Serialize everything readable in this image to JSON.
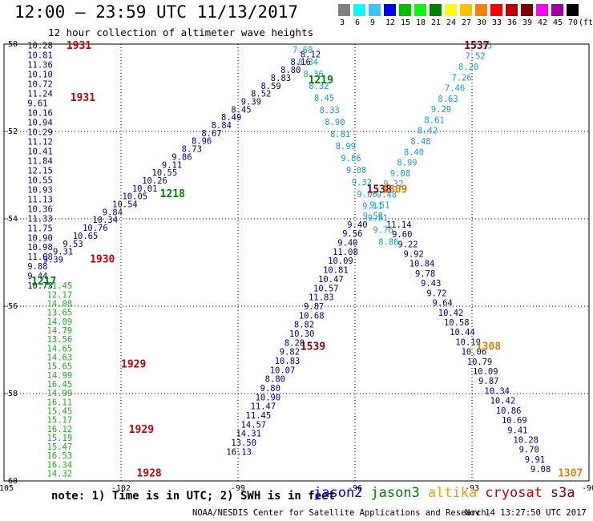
{
  "header": {
    "title": "12:00 — 23:59 UTC 11/13/2017",
    "subtitle": "12 hour collection of altimeter wave heights"
  },
  "color_scale": {
    "unit_label": "(ft)",
    "entries": [
      {
        "label": "3",
        "color": "#808080"
      },
      {
        "label": "6",
        "color": "#00ffff"
      },
      {
        "label": "9",
        "color": "#40c0ff"
      },
      {
        "label": "12",
        "color": "#0000ff"
      },
      {
        "label": "15",
        "color": "#00c000"
      },
      {
        "label": "18",
        "color": "#00ff00"
      },
      {
        "label": "21",
        "color": "#008000"
      },
      {
        "label": "24",
        "color": "#ffff00"
      },
      {
        "label": "27",
        "color": "#ffc000"
      },
      {
        "label": "30",
        "color": "#ff8000"
      },
      {
        "label": "33",
        "color": "#ff0000"
      },
      {
        "label": "36",
        "color": "#c00000"
      },
      {
        "label": "39",
        "color": "#800000"
      },
      {
        "label": "42",
        "color": "#ff00ff"
      },
      {
        "label": "45",
        "color": "#a000a0"
      },
      {
        "label": "70",
        "color": "#000000"
      }
    ]
  },
  "map": {
    "lon_ticks": [
      "-105",
      "-102",
      "-99",
      "-96",
      "-93",
      "-90"
    ],
    "lat_ticks": [
      "-50",
      "-52",
      "-54",
      "-56",
      "-58",
      "-60"
    ],
    "lon_range": [
      -105,
      -90
    ],
    "lat_range": [
      -60,
      -50
    ]
  },
  "tracks": [
    {
      "name": "col-left",
      "x": -104.4,
      "y_start": -50.1,
      "y_end": -55.6,
      "colors": "#000080",
      "values": [
        "10.28",
        "10.81",
        "11.36",
        "10.10",
        "10.72",
        "11.24",
        "9.61",
        "10.16",
        "10.94",
        "10.29",
        "11.12",
        "10.41",
        "11.84",
        "12.15",
        "10.55",
        "10.93",
        "11.13",
        "10.36",
        "11.33",
        "11.75",
        "10.90",
        "10.98",
        "11.08",
        "9.88",
        "9.44",
        "10.73"
      ]
    },
    {
      "name": "col-left-2",
      "x": -103.9,
      "y_start": -55.6,
      "y_end": -59.9,
      "colors": "#22aa22",
      "values": [
        "11.45",
        "12.17",
        "14.08",
        "13.65",
        "14.09",
        "14.79",
        "13.56",
        "14.65",
        "14.63",
        "15.65",
        "14.99",
        "16.45",
        "14.99",
        "16.11",
        "15.45",
        "15.17",
        "16.12",
        "15.19",
        "15.47",
        "16.53",
        "16.34",
        "14.32"
      ]
    },
    {
      "name": "diag-1218",
      "x_start": -104.0,
      "y_start": -55.0,
      "x_end": -97.4,
      "y_end": -50.3,
      "colors": "#000080",
      "values": [
        "9.39",
        "9.31",
        "9.53",
        "10.65",
        "10.76",
        "10.34",
        "9.84",
        "10.54",
        "10.05",
        "10.01",
        "10.26",
        "10.55",
        "9.11",
        "9.86",
        "8.73",
        "8.96",
        "8.67",
        "8.84",
        "8.49",
        "8.45",
        "9.39",
        "8.52",
        "8.59",
        "8.83",
        "8.80",
        "8.16",
        "8.12"
      ]
    },
    {
      "name": "diag-1539",
      "x_start": -99.3,
      "y_start": -59.4,
      "x_end": -96.2,
      "y_end": -54.2,
      "colors": "#000080",
      "values": [
        "16.13",
        "13.50",
        "14.31",
        "14.57",
        "11.45",
        "11.47",
        "10.90",
        "9.80",
        "8.80",
        "10.07",
        "10.83",
        "9.82",
        "8.28",
        "10.30",
        "8.82",
        "10.68",
        "9.87",
        "11.83",
        "10.57",
        "10.47",
        "10.81",
        "10.09",
        "11.08",
        "9.40",
        "9.56",
        "9.40"
      ]
    },
    {
      "name": "diag-1537",
      "x_start": -95.8,
      "y_start": -54.0,
      "x_end": -93.0,
      "y_end": -50.1,
      "colors": "#1a9ad0",
      "values": [
        "9.58",
        "9.51",
        "9.48",
        "9.32",
        "9.08",
        "8.99",
        "8.40",
        "8.48",
        "8.42",
        "8.61",
        "9.29",
        "8.63",
        "7.46",
        "7.26",
        "8.20",
        "7.52",
        "7.15"
      ]
    },
    {
      "name": "diag-1538",
      "x_start": -97.6,
      "y_start": -50.2,
      "x_end": -95.4,
      "y_end": -54.6,
      "colors": "#1a9ad0",
      "values": [
        "7.68",
        "8.34",
        "8.36",
        "8.32",
        "8.45",
        "8.33",
        "8.90",
        "8.81",
        "8.99",
        "9.86",
        "9.08",
        "9.32",
        "9.06",
        "9.11",
        "9.51",
        "9.76",
        "8.86"
      ]
    },
    {
      "name": "diag-1308",
      "x_start": -95.2,
      "y_start": -54.2,
      "x_end": -91.5,
      "y_end": -59.8,
      "colors": "#000080",
      "values": [
        "11.14",
        "9.60",
        "9.22",
        "9.92",
        "10.84",
        "9.78",
        "9.43",
        "9.72",
        "9.64",
        "10.42",
        "10.58",
        "10.44",
        "10.19",
        "10.06",
        "10.79",
        "10.09",
        "9.87",
        "10.34",
        "10.42",
        "10.86",
        "10.69",
        "9.41",
        "10.28",
        "9.70",
        "9.91",
        "9.08"
      ]
    }
  ],
  "time_labels": [
    {
      "text": "1931",
      "lon": -103.4,
      "lat": -50.1,
      "color": "#cc0000"
    },
    {
      "text": "1931",
      "lon": -103.3,
      "lat": -51.3,
      "color": "#cc0000"
    },
    {
      "text": "1930",
      "lon": -102.8,
      "lat": -55.0,
      "color": "#cc0000"
    },
    {
      "text": "1929",
      "lon": -102.0,
      "lat": -57.4,
      "color": "#cc0000"
    },
    {
      "text": "1929",
      "lon": -101.8,
      "lat": -58.9,
      "color": "#cc0000"
    },
    {
      "text": "1928",
      "lon": -101.6,
      "lat": -59.9,
      "color": "#cc0000"
    },
    {
      "text": "1219",
      "lon": -97.2,
      "lat": -50.9,
      "color": "#008000"
    },
    {
      "text": "1218",
      "lon": -101.0,
      "lat": -53.5,
      "color": "#008000"
    },
    {
      "text": "1217",
      "lon": -104.3,
      "lat": -55.5,
      "color": "#008000"
    },
    {
      "text": "1537",
      "lon": -93.2,
      "lat": -50.0,
      "color": "#800000"
    },
    {
      "text": "1538",
      "lon": -95.7,
      "lat": -53.4,
      "color": "#800000"
    },
    {
      "text": "1539",
      "lon": -97.4,
      "lat": -57.0,
      "color": "#800000"
    },
    {
      "text": "1309",
      "lon": -95.3,
      "lat": -53.4,
      "color": "#e08000"
    },
    {
      "text": "1308",
      "lon": -92.9,
      "lat": -57.0,
      "color": "#e08000"
    },
    {
      "text": "1307",
      "lon": -90.8,
      "lat": -59.9,
      "color": "#e08000"
    }
  ],
  "footer": {
    "note": "note: 1) Time is in UTC; 2) SWH is in feet",
    "legend": [
      {
        "text": "jason2",
        "color": "#0000ff"
      },
      {
        "text": "jason3",
        "color": "#008000"
      },
      {
        "text": "altika",
        "color": "#ff9900"
      },
      {
        "text": "cryosat",
        "color": "#cc0000"
      },
      {
        "text": "s3a",
        "color": "#800000"
      }
    ],
    "org": "NOAA/NESDIS Center for Satellite Applications and Research",
    "timestamp": "Nov 14 13:27:50 UTC 2017"
  }
}
